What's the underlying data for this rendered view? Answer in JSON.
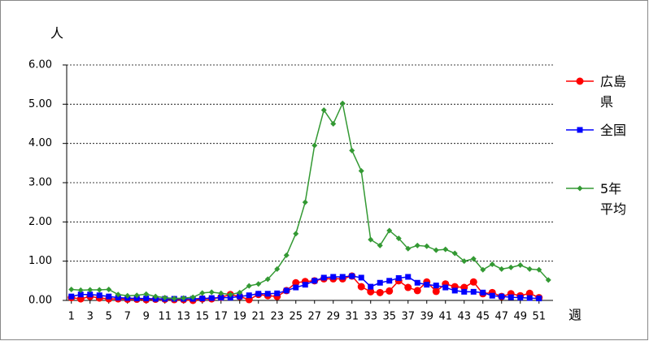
{
  "chart_data": {
    "type": "line",
    "y_unit_label": "人",
    "x_label": "週",
    "x": [
      1,
      2,
      3,
      4,
      5,
      6,
      7,
      8,
      9,
      10,
      11,
      12,
      13,
      14,
      15,
      16,
      17,
      18,
      19,
      20,
      21,
      22,
      23,
      24,
      25,
      26,
      27,
      28,
      29,
      30,
      31,
      32,
      33,
      34,
      35,
      36,
      37,
      38,
      39,
      40,
      41,
      42,
      43,
      44,
      45,
      46,
      47,
      48,
      49,
      50,
      51,
      52
    ],
    "xlim": [
      0.5,
      52.5
    ],
    "xticks": [
      1,
      3,
      5,
      7,
      9,
      11,
      13,
      15,
      17,
      19,
      21,
      23,
      25,
      27,
      29,
      31,
      33,
      35,
      37,
      39,
      41,
      43,
      45,
      47,
      49,
      51
    ],
    "ylim": [
      0,
      6
    ],
    "yticks": [
      {
        "value": 0,
        "label": "0.00"
      },
      {
        "value": 1,
        "label": "1.00"
      },
      {
        "value": 2,
        "label": "2.00"
      },
      {
        "value": 3,
        "label": "3.00"
      },
      {
        "value": 4,
        "label": "4.00"
      },
      {
        "value": 5,
        "label": "5.00"
      },
      {
        "value": 6,
        "label": "6.00"
      }
    ],
    "grid": true,
    "series": [
      {
        "name": "広島県",
        "color": "#ff0000",
        "marker": "circle",
        "values": [
          0.07,
          0.04,
          0.1,
          0.06,
          0.04,
          0.04,
          0.03,
          0.03,
          0.02,
          0.03,
          0.03,
          0.02,
          0.02,
          0.0,
          0.04,
          0.04,
          0.08,
          0.15,
          0.1,
          0.02,
          0.15,
          0.12,
          0.1,
          0.25,
          0.45,
          0.48,
          0.5,
          0.55,
          0.55,
          0.55,
          0.62,
          0.35,
          0.22,
          0.2,
          0.24,
          0.5,
          0.33,
          0.25,
          0.47,
          0.23,
          0.42,
          0.35,
          0.33,
          0.47,
          0.17,
          0.2,
          0.1,
          0.17,
          0.12,
          0.18,
          0.07,
          null
        ]
      },
      {
        "name": "全国",
        "color": "#0000ff",
        "marker": "square",
        "values": [
          0.1,
          0.15,
          0.15,
          0.13,
          0.1,
          0.07,
          0.06,
          0.05,
          0.05,
          0.04,
          0.04,
          0.04,
          0.04,
          0.04,
          0.05,
          0.06,
          0.07,
          0.07,
          0.1,
          0.13,
          0.17,
          0.17,
          0.18,
          0.25,
          0.33,
          0.4,
          0.5,
          0.58,
          0.6,
          0.6,
          0.62,
          0.58,
          0.35,
          0.45,
          0.5,
          0.57,
          0.6,
          0.45,
          0.4,
          0.38,
          0.33,
          0.25,
          0.22,
          0.22,
          0.2,
          0.12,
          0.1,
          0.08,
          0.07,
          0.06,
          0.05,
          null
        ]
      },
      {
        "name": "5年平均",
        "color": "#339933",
        "marker": "diamond",
        "values": [
          0.28,
          0.26,
          0.27,
          0.27,
          0.28,
          0.15,
          0.12,
          0.13,
          0.16,
          0.1,
          0.07,
          0.05,
          0.06,
          0.08,
          0.19,
          0.21,
          0.18,
          0.15,
          0.2,
          0.37,
          0.42,
          0.54,
          0.8,
          1.15,
          1.7,
          2.5,
          3.95,
          4.85,
          4.5,
          5.02,
          3.82,
          3.3,
          1.55,
          1.4,
          1.78,
          1.58,
          1.32,
          1.4,
          1.38,
          1.28,
          1.3,
          1.2,
          1.0,
          1.06,
          0.78,
          0.92,
          0.8,
          0.84,
          0.9,
          0.8,
          0.78,
          0.52
        ]
      }
    ]
  }
}
